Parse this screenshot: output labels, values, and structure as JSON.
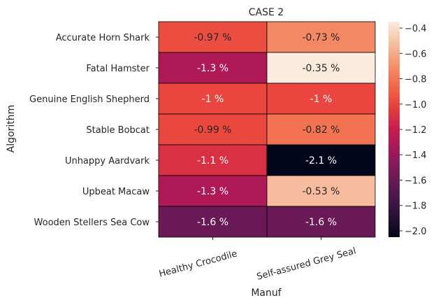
{
  "chart_data": {
    "type": "heatmap",
    "title": "CASE 2",
    "xlabel": "Manuf",
    "ylabel": "Algorithm",
    "columns": [
      "Healthy Crocodile",
      "Self-assured Grey Seal"
    ],
    "rows": [
      "Accurate Horn Shark",
      "Fatal Hamster",
      "Genuine English Shepherd",
      "Stable Bobcat",
      "Unhappy Aardvark",
      "Upbeat Macaw",
      "Wooden Stellers Sea Cow"
    ],
    "values": [
      [
        -0.97,
        -0.73
      ],
      [
        -1.3,
        -0.35
      ],
      [
        -1.0,
        -1.0
      ],
      [
        -0.99,
        -0.82
      ],
      [
        -1.1,
        -2.1
      ],
      [
        -1.3,
        -0.53
      ],
      [
        -1.6,
        -1.6
      ]
    ],
    "cell_labels": [
      [
        "-0.97 %",
        "-0.73 %"
      ],
      [
        "-1.3 %",
        "-0.35 %"
      ],
      [
        "-1 %",
        "-1 %"
      ],
      [
        "-0.99 %",
        "-0.82 %"
      ],
      [
        "-1.1 %",
        "-2.1 %"
      ],
      [
        "-1.3 %",
        "-0.53 %"
      ],
      [
        "-1.6 %",
        "-1.6 %"
      ]
    ],
    "colorbar": {
      "range": [
        -2.05,
        -0.35
      ],
      "ticks": [
        -2.0,
        -1.8,
        -1.6,
        -1.4,
        -1.2,
        -1.0,
        -0.8,
        -0.6,
        -0.4
      ],
      "tick_labels": [
        "−2.0",
        "−1.8",
        "−1.6",
        "−1.4",
        "−1.2",
        "−1.0",
        "−0.8",
        "−0.6",
        "−0.4"
      ],
      "colormap": "rocket"
    },
    "xtick_rotation_deg": 15,
    "grid": false
  }
}
